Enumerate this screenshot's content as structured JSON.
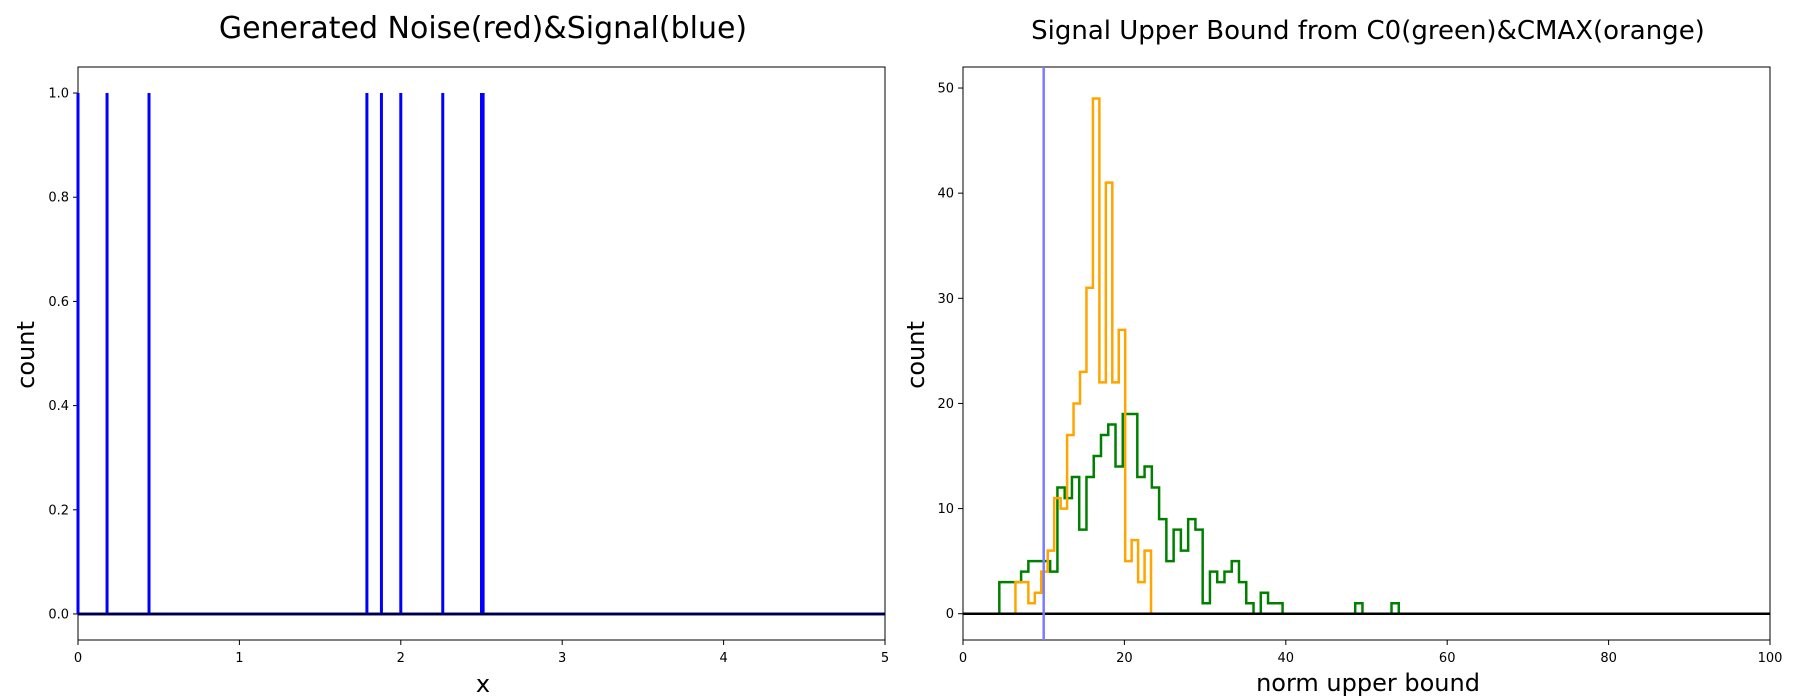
{
  "chart_data": [
    {
      "type": "bar",
      "title": "Generated Noise(red)&Signal(blue)",
      "xlabel": "x",
      "ylabel": "count",
      "xlim": [
        0,
        5
      ],
      "ylim": [
        -0.05,
        1.05
      ],
      "xticks": [
        "0",
        "1",
        "2",
        "3",
        "4",
        "5"
      ],
      "yticks": [
        "0.0",
        "0.2",
        "0.4",
        "0.6",
        "0.8",
        "1.0"
      ],
      "grid": false,
      "colors": {
        "signal": "#0000ff",
        "baseline": "#000000"
      },
      "series": [
        {
          "x": [
            0.0,
            0.18,
            0.44,
            1.79,
            1.88,
            2.0,
            2.26,
            2.5,
            2.51
          ],
          "values": [
            1,
            1,
            1,
            1,
            1,
            1,
            1,
            1,
            1
          ]
        }
      ]
    },
    {
      "type": "line",
      "title": "Signal Upper Bound from C0(green)&CMAX(orange)",
      "xlabel": "norm upper bound",
      "ylabel": "count",
      "xlim": [
        0,
        100
      ],
      "ylim": [
        -2.5,
        52
      ],
      "xticks": [
        "0",
        "20",
        "40",
        "60",
        "80",
        "100"
      ],
      "yticks": [
        "0",
        "10",
        "20",
        "30",
        "40",
        "50"
      ],
      "grid": false,
      "vline": {
        "x": 10,
        "color": "#7b7bff"
      },
      "colors": {
        "green": "#008000",
        "orange": "#ffa500",
        "baseline": "#000000"
      },
      "series": [
        {
          "color": "#008000",
          "bin_edges": [
            4.5,
            5.4,
            6.3,
            7.2,
            8.1,
            9.0,
            9.9,
            10.8,
            11.7,
            12.6,
            13.5,
            14.4,
            15.3,
            16.2,
            17.1,
            18.0,
            18.9,
            19.8,
            20.7,
            21.6,
            22.5,
            23.4,
            24.3,
            25.2,
            26.1,
            27.0,
            27.9,
            28.8,
            29.7,
            30.6,
            31.5,
            32.4,
            33.3,
            34.2,
            35.1,
            36.0,
            36.9,
            37.8,
            38.7,
            39.6,
            40.5,
            41.4,
            42.3,
            43.2,
            44.1,
            45.0,
            45.9,
            46.8,
            47.7,
            48.6,
            49.5,
            50.4,
            51.3,
            52.2,
            53.1,
            54.0
          ],
          "counts": [
            3,
            3,
            3,
            4,
            5,
            5,
            5,
            4,
            12,
            11,
            13,
            8,
            13,
            15,
            17,
            18,
            14,
            19,
            19,
            13,
            14,
            12,
            9,
            5,
            8,
            6,
            9,
            8,
            1,
            4,
            3,
            4,
            5,
            3,
            1,
            0,
            2,
            1,
            1,
            0,
            0,
            0,
            0,
            0,
            0,
            0,
            0,
            0,
            0,
            1,
            0,
            0,
            0,
            0,
            1
          ]
        },
        {
          "color": "#ffa500",
          "bin_edges": [
            6.5,
            7.3,
            8.1,
            8.9,
            9.7,
            10.5,
            11.3,
            12.1,
            12.9,
            13.7,
            14.5,
            15.3,
            16.1,
            16.9,
            17.7,
            18.5,
            19.3,
            20.1,
            20.9,
            21.7,
            22.5,
            23.3,
            24.1,
            24.9,
            25.7,
            26.5,
            27.3
          ],
          "counts": [
            3,
            3,
            1,
            2,
            4,
            6,
            11,
            10,
            17,
            20,
            23,
            31,
            49,
            22,
            41,
            22,
            27,
            5,
            7,
            3,
            6,
            0,
            0,
            0,
            0,
            0
          ]
        }
      ]
    }
  ]
}
